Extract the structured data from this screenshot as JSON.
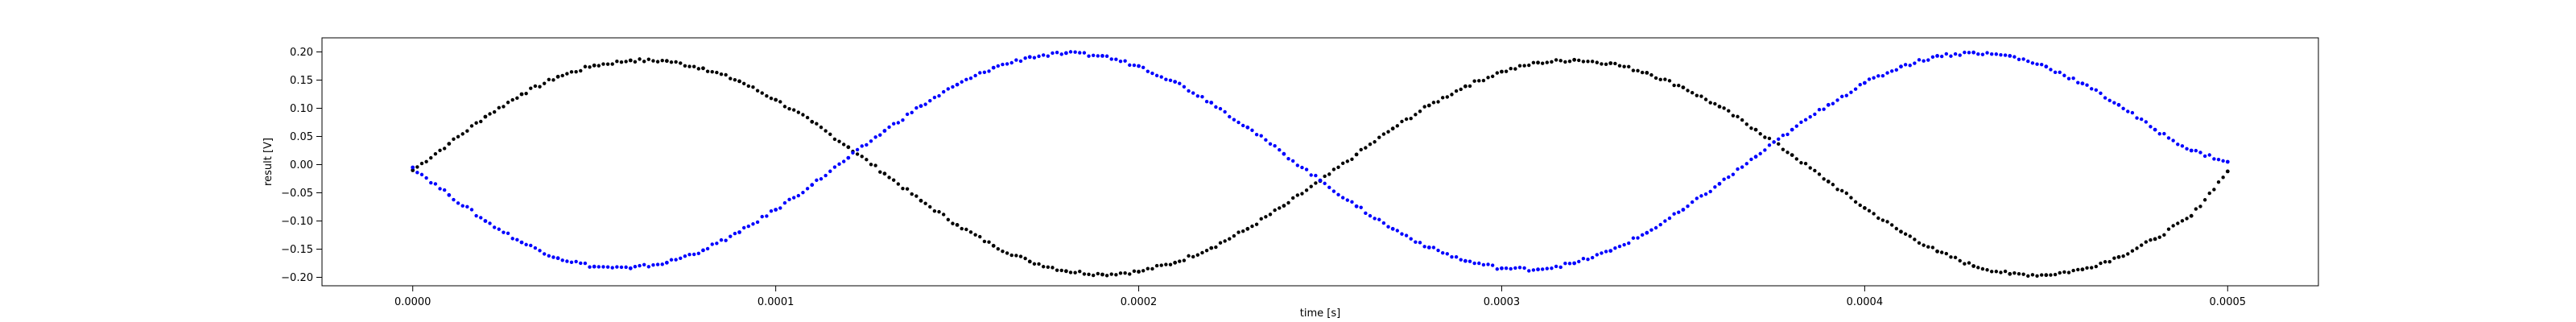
{
  "chart_data": {
    "type": "scatter",
    "title": "",
    "xlabel": "time [s]",
    "ylabel": "result [V]",
    "xlim": [
      -2.5e-05,
      0.000525
    ],
    "ylim": [
      -0.215,
      0.225
    ],
    "grid": false,
    "legend": "none",
    "x_ticks": [
      0.0,
      0.0001,
      0.0002,
      0.0003,
      0.0004,
      0.0005
    ],
    "x_tick_labels": [
      "0.0000",
      "0.0001",
      "0.0002",
      "0.0003",
      "0.0004",
      "0.0005"
    ],
    "y_ticks": [
      -0.2,
      -0.15,
      -0.1,
      -0.05,
      0.0,
      0.05,
      0.1,
      0.15,
      0.2
    ],
    "y_tick_labels": [
      "−0.20",
      "−0.15",
      "−0.10",
      "−0.05",
      "0.00",
      "0.05",
      "0.10",
      "0.15",
      "0.20"
    ],
    "series": [
      {
        "color": "#000000",
        "marker": "dot",
        "x": [
          0.0,
          1e-05,
          2e-05,
          3e-05,
          4e-05,
          5e-05,
          6e-05,
          7e-05,
          8e-05,
          9e-05,
          0.0001,
          0.00011,
          0.00012,
          0.00013,
          0.00014,
          0.00015,
          0.00016,
          0.00017,
          0.00018,
          0.00019,
          0.0002,
          0.00021,
          0.00022,
          0.00023,
          0.00024,
          0.00025,
          0.00026,
          0.00027,
          0.00028,
          0.00029,
          0.0003,
          0.00031,
          0.00032,
          0.00033,
          0.00034,
          0.00035,
          0.00036,
          0.00037,
          0.00038,
          0.00039,
          0.0004,
          0.00041,
          0.00042,
          0.00043,
          0.00044,
          0.00045,
          0.00046,
          0.00047,
          0.00048,
          0.00049,
          0.0005
        ],
        "y": [
          -0.01,
          0.037,
          0.085,
          0.125,
          0.156,
          0.176,
          0.185,
          0.184,
          0.171,
          0.148,
          0.115,
          0.076,
          0.031,
          -0.016,
          -0.064,
          -0.107,
          -0.144,
          -0.172,
          -0.189,
          -0.195,
          -0.19,
          -0.174,
          -0.148,
          -0.114,
          -0.073,
          -0.029,
          0.018,
          0.064,
          0.105,
          0.139,
          0.165,
          0.181,
          0.186,
          0.18,
          0.163,
          0.137,
          0.103,
          0.062,
          0.017,
          -0.03,
          -0.077,
          -0.119,
          -0.154,
          -0.18,
          -0.194,
          -0.196,
          -0.186,
          -0.164,
          -0.132,
          -0.091,
          -0.012
        ]
      },
      {
        "color": "#0000ff",
        "marker": "dot",
        "x": [
          0.0,
          1e-05,
          2e-05,
          3e-05,
          4e-05,
          5e-05,
          6e-05,
          7e-05,
          8e-05,
          9e-05,
          0.0001,
          0.00011,
          0.00012,
          0.00013,
          0.00014,
          0.00015,
          0.00016,
          0.00017,
          0.00018,
          0.00019,
          0.0002,
          0.00021,
          0.00022,
          0.00023,
          0.00024,
          0.00025,
          0.00026,
          0.00027,
          0.00028,
          0.00029,
          0.0003,
          0.00031,
          0.00032,
          0.00033,
          0.00034,
          0.00035,
          0.00036,
          0.00037,
          0.00038,
          0.00039,
          0.0004,
          0.00041,
          0.00042,
          0.00043,
          0.00044,
          0.00045,
          0.00046,
          0.00047,
          0.00048,
          0.00049,
          0.0005
        ],
        "y": [
          -0.005,
          -0.054,
          -0.1,
          -0.138,
          -0.166,
          -0.181,
          -0.184,
          -0.174,
          -0.152,
          -0.12,
          -0.08,
          -0.036,
          0.012,
          0.06,
          0.104,
          0.142,
          0.172,
          0.191,
          0.198,
          0.193,
          0.175,
          0.147,
          0.11,
          0.066,
          0.019,
          -0.028,
          -0.074,
          -0.114,
          -0.147,
          -0.171,
          -0.184,
          -0.186,
          -0.175,
          -0.153,
          -0.121,
          -0.08,
          -0.034,
          0.014,
          0.062,
          0.106,
          0.145,
          0.174,
          0.193,
          0.199,
          0.193,
          0.174,
          0.144,
          0.106,
          0.062,
          0.025,
          0.005
        ]
      }
    ]
  }
}
